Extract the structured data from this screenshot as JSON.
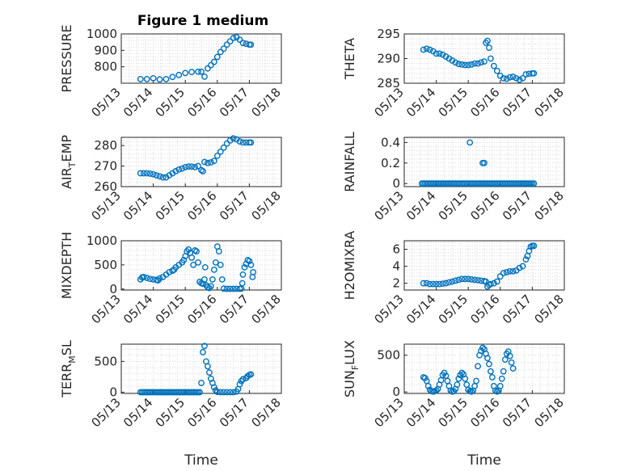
{
  "figure_title": "Figure 1 medium",
  "colors": {
    "marker": "#0072BD",
    "axis": "#262626",
    "grid": "#d9d9d9"
  },
  "chart_data": [
    {
      "id": "pressure",
      "type": "scatter",
      "ylabel": "PRESSURE",
      "ylim": [
        700,
        1000
      ],
      "yticks": [
        800,
        900,
        1000
      ],
      "ytick_labels": [
        "800",
        "900",
        "1000"
      ],
      "xlim": [
        0,
        5
      ],
      "xticks": [
        0,
        1,
        2,
        3,
        4,
        5
      ],
      "xtick_labels": [
        "05/13",
        "05/14",
        "05/15",
        "05/16",
        "05/17",
        "05/18"
      ],
      "points": [
        [
          0.6,
          725
        ],
        [
          0.8,
          725
        ],
        [
          1.0,
          730
        ],
        [
          1.2,
          723
        ],
        [
          1.4,
          725
        ],
        [
          1.6,
          738
        ],
        [
          1.8,
          750
        ],
        [
          2.0,
          762
        ],
        [
          2.2,
          768
        ],
        [
          2.4,
          770
        ],
        [
          2.5,
          770
        ],
        [
          2.6,
          740
        ],
        [
          2.7,
          790
        ],
        [
          2.8,
          810
        ],
        [
          2.9,
          830
        ],
        [
          3.0,
          860
        ],
        [
          3.1,
          890
        ],
        [
          3.2,
          910
        ],
        [
          3.3,
          935
        ],
        [
          3.4,
          955
        ],
        [
          3.5,
          975
        ],
        [
          3.6,
          980
        ],
        [
          3.7,
          965
        ],
        [
          3.8,
          945
        ],
        [
          3.9,
          940
        ],
        [
          4.0,
          935
        ],
        [
          4.05,
          935
        ]
      ],
      "xlabel": ""
    },
    {
      "id": "theta",
      "type": "scatter",
      "ylabel": "THETA",
      "ylim": [
        285,
        295
      ],
      "yticks": [
        285,
        290,
        295
      ],
      "ytick_labels": [
        "285",
        "290",
        "295"
      ],
      "xlim": [
        0,
        5
      ],
      "xticks": [
        0,
        1,
        2,
        3,
        4,
        5
      ],
      "xtick_labels": [
        "05/13",
        "05/14",
        "05/15",
        "05/16",
        "05/17",
        "05/18"
      ],
      "points": [
        [
          0.6,
          291.8
        ],
        [
          0.7,
          292.0
        ],
        [
          0.8,
          291.8
        ],
        [
          0.9,
          291.5
        ],
        [
          1.0,
          291.0
        ],
        [
          1.1,
          291.0
        ],
        [
          1.2,
          290.8
        ],
        [
          1.3,
          290.4
        ],
        [
          1.4,
          290.0
        ],
        [
          1.5,
          289.6
        ],
        [
          1.6,
          289.2
        ],
        [
          1.7,
          288.9
        ],
        [
          1.8,
          288.8
        ],
        [
          1.9,
          288.7
        ],
        [
          2.0,
          288.7
        ],
        [
          2.1,
          288.8
        ],
        [
          2.2,
          289.0
        ],
        [
          2.3,
          289.0
        ],
        [
          2.4,
          289.2
        ],
        [
          2.5,
          289.4
        ],
        [
          2.55,
          293.2
        ],
        [
          2.6,
          293.6
        ],
        [
          2.65,
          292.2
        ],
        [
          2.7,
          290.0
        ],
        [
          2.8,
          288.5
        ],
        [
          2.9,
          287.5
        ],
        [
          3.0,
          286.5
        ],
        [
          3.1,
          286.0
        ],
        [
          3.2,
          285.9
        ],
        [
          3.3,
          286.2
        ],
        [
          3.4,
          286.3
        ],
        [
          3.5,
          286.0
        ],
        [
          3.6,
          285.7
        ],
        [
          3.7,
          286.0
        ],
        [
          3.8,
          286.8
        ],
        [
          3.9,
          286.9
        ],
        [
          4.0,
          287.0
        ],
        [
          4.05,
          287.0
        ]
      ],
      "xlabel": ""
    },
    {
      "id": "air_temp",
      "type": "scatter",
      "ylabel": "AIR_TEMP",
      "ylabel_parts": {
        "pre": "AIR",
        "sub": "T",
        "post": "EMP"
      },
      "ylim": [
        260,
        284
      ],
      "yticks": [
        260,
        270,
        280
      ],
      "ytick_labels": [
        "260",
        "270",
        "280"
      ],
      "xlim": [
        0,
        5
      ],
      "xticks": [
        0,
        1,
        2,
        3,
        4,
        5
      ],
      "xtick_labels": [
        "05/13",
        "05/14",
        "05/15",
        "05/16",
        "05/17",
        "05/18"
      ],
      "points": [
        [
          0.6,
          266.5
        ],
        [
          0.7,
          266.5
        ],
        [
          0.8,
          266.5
        ],
        [
          0.9,
          266.3
        ],
        [
          1.0,
          266.0
        ],
        [
          1.1,
          265.5
        ],
        [
          1.2,
          265.0
        ],
        [
          1.3,
          264.5
        ],
        [
          1.4,
          264.5
        ],
        [
          1.5,
          265.5
        ],
        [
          1.6,
          266.5
        ],
        [
          1.7,
          267.5
        ],
        [
          1.8,
          268.3
        ],
        [
          1.9,
          268.8
        ],
        [
          2.0,
          269.5
        ],
        [
          2.1,
          269.8
        ],
        [
          2.2,
          269.8
        ],
        [
          2.3,
          269.5
        ],
        [
          2.4,
          270.0
        ],
        [
          2.5,
          268.0
        ],
        [
          2.55,
          267.5
        ],
        [
          2.6,
          272.0
        ],
        [
          2.7,
          271.5
        ],
        [
          2.8,
          271.8
        ],
        [
          2.9,
          272.5
        ],
        [
          3.0,
          275.0
        ],
        [
          3.1,
          277.0
        ],
        [
          3.2,
          279.0
        ],
        [
          3.3,
          281.0
        ],
        [
          3.4,
          282.5
        ],
        [
          3.5,
          283.5
        ],
        [
          3.6,
          283.0
        ],
        [
          3.7,
          282.0
        ],
        [
          3.8,
          281.5
        ],
        [
          3.9,
          281.5
        ],
        [
          4.0,
          281.5
        ],
        [
          4.05,
          281.5
        ]
      ],
      "xlabel": ""
    },
    {
      "id": "rainfall",
      "type": "scatter",
      "ylabel": "RAINFALL",
      "ylim": [
        -0.03,
        0.45
      ],
      "yticks": [
        0,
        0.2,
        0.4
      ],
      "ytick_labels": [
        "0",
        "0.2",
        "0.4"
      ],
      "xlim": [
        0,
        5
      ],
      "xticks": [
        0,
        1,
        2,
        3,
        4,
        5
      ],
      "xtick_labels": [
        "05/13",
        "05/14",
        "05/15",
        "05/16",
        "05/17",
        "05/18"
      ],
      "zero_range": [
        0.55,
        4.05
      ],
      "zero_step": 0.05,
      "points": [
        [
          2.05,
          0.4
        ],
        [
          2.45,
          0.2
        ],
        [
          2.5,
          0.2
        ]
      ],
      "xlabel": ""
    },
    {
      "id": "mixdepth",
      "type": "scatter",
      "ylabel": "MIXDEPTH",
      "ylim": [
        -20,
        1000
      ],
      "yticks": [
        0,
        500,
        1000
      ],
      "ytick_labels": [
        "0",
        "500",
        "1000"
      ],
      "xlim": [
        0,
        5
      ],
      "xticks": [
        0,
        1,
        2,
        3,
        4,
        5
      ],
      "xtick_labels": [
        "05/13",
        "05/14",
        "05/15",
        "05/16",
        "05/17",
        "05/18"
      ],
      "points": [
        [
          0.6,
          200
        ],
        [
          0.65,
          240
        ],
        [
          0.7,
          250
        ],
        [
          0.8,
          230
        ],
        [
          0.9,
          210
        ],
        [
          1.0,
          200
        ],
        [
          1.1,
          190
        ],
        [
          1.15,
          180
        ],
        [
          1.2,
          220
        ],
        [
          1.3,
          250
        ],
        [
          1.4,
          300
        ],
        [
          1.5,
          350
        ],
        [
          1.6,
          380
        ],
        [
          1.65,
          400
        ],
        [
          1.7,
          450
        ],
        [
          1.8,
          500
        ],
        [
          1.9,
          550
        ],
        [
          1.95,
          600
        ],
        [
          2.0,
          680
        ],
        [
          2.05,
          780
        ],
        [
          2.1,
          820
        ],
        [
          2.15,
          750
        ],
        [
          2.2,
          650
        ],
        [
          2.25,
          500
        ],
        [
          2.3,
          800
        ],
        [
          2.35,
          780
        ],
        [
          2.4,
          550
        ],
        [
          2.45,
          150
        ],
        [
          2.5,
          120
        ],
        [
          2.55,
          110
        ],
        [
          2.6,
          200
        ],
        [
          2.62,
          450
        ],
        [
          2.65,
          80
        ],
        [
          2.7,
          40
        ],
        [
          2.75,
          20
        ],
        [
          2.8,
          60
        ],
        [
          2.85,
          200
        ],
        [
          2.9,
          400
        ],
        [
          2.95,
          550
        ],
        [
          3.0,
          880
        ],
        [
          3.05,
          780
        ],
        [
          3.1,
          500
        ],
        [
          3.15,
          200
        ],
        [
          3.2,
          10
        ],
        [
          3.3,
          5
        ],
        [
          3.4,
          5
        ],
        [
          3.5,
          5
        ],
        [
          3.6,
          5
        ],
        [
          3.7,
          5
        ],
        [
          3.75,
          10
        ],
        [
          3.78,
          120
        ],
        [
          3.8,
          300
        ],
        [
          3.85,
          450
        ],
        [
          3.9,
          520
        ],
        [
          3.95,
          600
        ],
        [
          4.0,
          580
        ],
        [
          4.05,
          500
        ],
        [
          4.1,
          250
        ],
        [
          4.12,
          350
        ]
      ],
      "xlabel": ""
    },
    {
      "id": "h2omixra",
      "type": "scatter",
      "ylabel": "H2OMIXRA",
      "ylim": [
        1.2,
        7
      ],
      "yticks": [
        2,
        4,
        6
      ],
      "ytick_labels": [
        "2",
        "4",
        "6"
      ],
      "xlim": [
        0,
        5
      ],
      "xticks": [
        0,
        1,
        2,
        3,
        4,
        5
      ],
      "xtick_labels": [
        "05/13",
        "05/14",
        "05/15",
        "05/16",
        "05/17",
        "05/18"
      ],
      "points": [
        [
          0.6,
          2.0
        ],
        [
          0.7,
          2.0
        ],
        [
          0.8,
          1.9
        ],
        [
          0.9,
          1.9
        ],
        [
          1.0,
          1.9
        ],
        [
          1.1,
          1.9
        ],
        [
          1.2,
          1.95
        ],
        [
          1.3,
          2.0
        ],
        [
          1.4,
          2.1
        ],
        [
          1.5,
          2.2
        ],
        [
          1.6,
          2.3
        ],
        [
          1.7,
          2.4
        ],
        [
          1.8,
          2.5
        ],
        [
          1.9,
          2.5
        ],
        [
          2.0,
          2.5
        ],
        [
          2.1,
          2.45
        ],
        [
          2.2,
          2.4
        ],
        [
          2.3,
          2.35
        ],
        [
          2.4,
          2.3
        ],
        [
          2.5,
          2.25
        ],
        [
          2.55,
          2.2
        ],
        [
          2.6,
          1.6
        ],
        [
          2.65,
          1.8
        ],
        [
          2.7,
          1.9
        ],
        [
          2.8,
          2.0
        ],
        [
          2.9,
          2.2
        ],
        [
          3.0,
          2.8
        ],
        [
          3.1,
          3.2
        ],
        [
          3.2,
          3.3
        ],
        [
          3.3,
          3.4
        ],
        [
          3.4,
          3.4
        ],
        [
          3.5,
          3.5
        ],
        [
          3.6,
          3.8
        ],
        [
          3.7,
          4.0
        ],
        [
          3.8,
          4.8
        ],
        [
          3.85,
          5.2
        ],
        [
          3.9,
          5.8
        ],
        [
          3.95,
          6.3
        ],
        [
          4.0,
          6.4
        ],
        [
          4.05,
          6.4
        ]
      ],
      "xlabel": ""
    },
    {
      "id": "terr_msl",
      "type": "scatter",
      "ylabel": "TERR_MSL",
      "ylabel_parts": {
        "pre": "TERR",
        "sub": "M",
        "post": "SL"
      },
      "ylim": [
        -20,
        780
      ],
      "yticks": [
        0,
        500
      ],
      "ytick_labels": [
        "0",
        "500"
      ],
      "xlim": [
        0,
        5
      ],
      "xticks": [
        0,
        1,
        2,
        3,
        4,
        5
      ],
      "xtick_labels": [
        "05/13",
        "05/14",
        "05/15",
        "05/16",
        "05/17",
        "05/18"
      ],
      "zero_range": [
        0.6,
        2.45
      ],
      "zero_step": 0.05,
      "points": [
        [
          2.5,
          150
        ],
        [
          2.55,
          650
        ],
        [
          2.6,
          750
        ],
        [
          2.65,
          500
        ],
        [
          2.7,
          420
        ],
        [
          2.75,
          320
        ],
        [
          2.8,
          220
        ],
        [
          2.85,
          150
        ],
        [
          2.9,
          80
        ],
        [
          2.95,
          30
        ],
        [
          3.0,
          5
        ],
        [
          3.1,
          0
        ],
        [
          3.2,
          0
        ],
        [
          3.3,
          0
        ],
        [
          3.4,
          0
        ],
        [
          3.5,
          0
        ],
        [
          3.6,
          10
        ],
        [
          3.65,
          50
        ],
        [
          3.7,
          130
        ],
        [
          3.75,
          180
        ],
        [
          3.8,
          210
        ],
        [
          3.9,
          230
        ],
        [
          3.95,
          260
        ],
        [
          4.0,
          280
        ],
        [
          4.05,
          290
        ]
      ],
      "xlabel": "Time"
    },
    {
      "id": "sun_flux",
      "type": "scatter",
      "ylabel": "SUN_FLUX",
      "ylabel_parts": {
        "pre": "SUN",
        "sub": "F",
        "post": "LUX"
      },
      "ylim": [
        -20,
        650
      ],
      "yticks": [
        0,
        500
      ],
      "ytick_labels": [
        "0",
        "500"
      ],
      "xlim": [
        0,
        5
      ],
      "xticks": [
        0,
        1,
        2,
        3,
        4,
        5
      ],
      "xtick_labels": [
        "05/13",
        "05/14",
        "05/15",
        "05/16",
        "05/17",
        "05/18"
      ],
      "points": [
        [
          0.6,
          200
        ],
        [
          0.65,
          190
        ],
        [
          0.7,
          150
        ],
        [
          0.75,
          80
        ],
        [
          0.8,
          30
        ],
        [
          0.85,
          10
        ],
        [
          0.9,
          5
        ],
        [
          0.95,
          10
        ],
        [
          1.0,
          20
        ],
        [
          1.05,
          40
        ],
        [
          1.1,
          100
        ],
        [
          1.15,
          160
        ],
        [
          1.2,
          230
        ],
        [
          1.25,
          260
        ],
        [
          1.3,
          220
        ],
        [
          1.35,
          150
        ],
        [
          1.4,
          80
        ],
        [
          1.45,
          20
        ],
        [
          1.5,
          5
        ],
        [
          1.55,
          10
        ],
        [
          1.6,
          40
        ],
        [
          1.65,
          100
        ],
        [
          1.7,
          180
        ],
        [
          1.75,
          230
        ],
        [
          1.8,
          260
        ],
        [
          1.85,
          240
        ],
        [
          1.9,
          180
        ],
        [
          1.95,
          100
        ],
        [
          2.0,
          30
        ],
        [
          2.05,
          10
        ],
        [
          2.1,
          5
        ],
        [
          2.15,
          20
        ],
        [
          2.2,
          80
        ],
        [
          2.25,
          150
        ],
        [
          2.3,
          350
        ],
        [
          2.35,
          500
        ],
        [
          2.4,
          560
        ],
        [
          2.45,
          600
        ],
        [
          2.5,
          580
        ],
        [
          2.55,
          520
        ],
        [
          2.6,
          460
        ],
        [
          2.65,
          380
        ],
        [
          2.7,
          280
        ],
        [
          2.75,
          200
        ],
        [
          2.8,
          80
        ],
        [
          2.85,
          20
        ],
        [
          2.9,
          5
        ],
        [
          2.95,
          20
        ],
        [
          3.0,
          80
        ],
        [
          3.05,
          180
        ],
        [
          3.1,
          280
        ],
        [
          3.15,
          440
        ],
        [
          3.2,
          520
        ],
        [
          3.25,
          550
        ],
        [
          3.3,
          490
        ],
        [
          3.35,
          400
        ],
        [
          3.4,
          320
        ]
      ],
      "xlabel": "Time"
    }
  ]
}
